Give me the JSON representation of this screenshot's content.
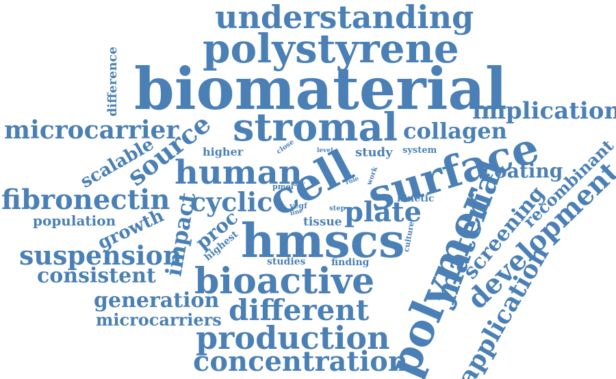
{
  "cloud": {
    "color": "#4a80b5",
    "words": {
      "understanding": "understanding",
      "polystyrene": "polystyrene",
      "biomaterial": "biomaterial",
      "difference": "difference",
      "implication": "implication",
      "microcarrier": "microcarrier",
      "stromal": "stromal",
      "collagen": "collagen",
      "source": "source",
      "scalable": "scalable",
      "higher": "higher",
      "close": "close",
      "level": "level",
      "study": "study",
      "system": "system",
      "surface": "surface",
      "human": "human",
      "cell": "cell",
      "recombinant": "recombinant",
      "coating": "coating",
      "fibronectin": "fibronectin",
      "cyclic": "cyclic",
      "pmol": "pmol",
      "day": "day",
      "role": "role",
      "work": "work",
      "kinetic": "kinetic",
      "impact": "impact",
      "vegf": "vegf",
      "line": "line",
      "step": "step",
      "plate": "plate",
      "material": "material",
      "development": "development",
      "population": "population",
      "growth": "growth",
      "proc": "proc",
      "tissue": "tissue",
      "polymer": "polymer",
      "screening": "screening",
      "highest": "highest",
      "hmscs": "hmscs",
      "culture": "culture",
      "suspension": "suspension",
      "studies": "studies",
      "finding": "finding",
      "consistent": "consistent",
      "bioactive": "bioactive",
      "generation": "generation",
      "different": "different",
      "microcarriers": "microcarriers",
      "production": "production",
      "application": "application",
      "concentration": "concentration"
    }
  }
}
